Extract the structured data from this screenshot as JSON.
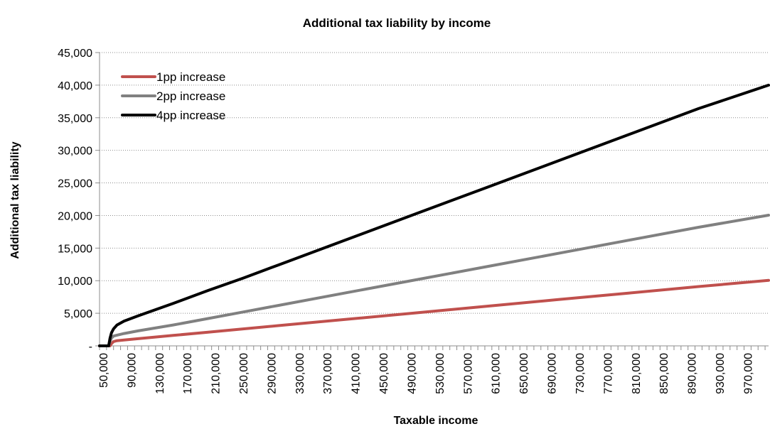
{
  "chart_data": {
    "type": "line",
    "title": "Additional tax liability by income",
    "xlabel": "Taxable income",
    "ylabel": "Additional tax liability",
    "xlim": [
      45000,
      1000000
    ],
    "ylim": [
      0,
      45000
    ],
    "x_tick_labels": [
      "50,000",
      "90,000",
      "130,000",
      "170,000",
      "210,000",
      "250,000",
      "290,000",
      "330,000",
      "370,000",
      "410,000",
      "450,000",
      "490,000",
      "530,000",
      "570,000",
      "610,000",
      "650,000",
      "690,000",
      "730,000",
      "770,000",
      "810,000",
      "850,000",
      "890,000",
      "930,000",
      "970,000"
    ],
    "y_tick_labels": [
      "-",
      "5,000",
      "10,000",
      "15,000",
      "20,000",
      "25,000",
      "30,000",
      "35,000",
      "40,000",
      "45,000"
    ],
    "grid": "horizontal dotted",
    "legend_position": "top-left",
    "x": [
      45000,
      52000,
      55000,
      58000,
      60000,
      62000,
      65000,
      70000,
      80000,
      100000,
      150000,
      200000,
      250000,
      300000,
      400000,
      500000,
      600000,
      700000,
      800000,
      900000,
      1000000
    ],
    "series": [
      {
        "name": "1pp increase",
        "color": "#c0504d",
        "values": [
          0,
          0,
          0,
          0,
          0,
          350,
          650,
          800,
          900,
          1100,
          1600,
          2100,
          2600,
          3100,
          4100,
          5100,
          6100,
          7100,
          8100,
          9100,
          10050
        ]
      },
      {
        "name": "2pp increase",
        "color": "#808080",
        "values": [
          0,
          0,
          0,
          0,
          700,
          1200,
          1500,
          1650,
          1900,
          2300,
          3200,
          4200,
          5200,
          6200,
          8200,
          10200,
          12200,
          14200,
          16200,
          18200,
          20050
        ]
      },
      {
        "name": "4pp increase",
        "color": "#000000",
        "values": [
          0,
          0,
          0,
          0,
          1200,
          2000,
          2600,
          3200,
          3800,
          4600,
          6500,
          8500,
          10400,
          12400,
          16400,
          20400,
          24400,
          28400,
          32400,
          36400,
          40000
        ]
      }
    ]
  }
}
